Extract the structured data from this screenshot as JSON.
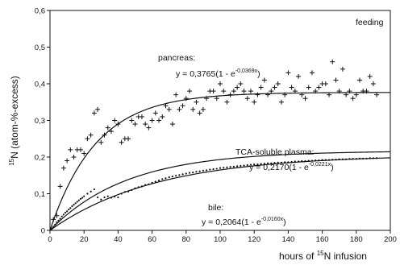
{
  "chart_data": {
    "type": "scatter",
    "title": "",
    "xlabel_pre": "hours of ",
    "xlabel_iso": "15",
    "xlabel_post": "N infusion",
    "ylabel_iso": "15",
    "ylabel_post": "N (atom-%-excess)",
    "xlim": [
      0,
      200
    ],
    "ylim": [
      0,
      0.6
    ],
    "x_ticks": [
      "0",
      "20",
      "40",
      "60",
      "80",
      "100",
      "120",
      "140",
      "160",
      "180",
      "200"
    ],
    "y_ticks": [
      "0",
      "0,1",
      "0,2",
      "0,3",
      "0,4",
      "0,5",
      "0,6"
    ],
    "grid": false,
    "corner_label": "feeding",
    "series": [
      {
        "name": "pancreas",
        "marker": "plus",
        "fit": {
          "a": 0.3765,
          "k": 0.0369
        },
        "label_name": "pancreas:",
        "equation_lhs": "y = 0,3765(1 - e",
        "equation_exp": "-0,0369x",
        "equation_rhs": ")",
        "points": [
          [
            2,
            0.03
          ],
          [
            4,
            0.04
          ],
          [
            6,
            0.12
          ],
          [
            8,
            0.17
          ],
          [
            10,
            0.19
          ],
          [
            12,
            0.22
          ],
          [
            14,
            0.2
          ],
          [
            16,
            0.22
          ],
          [
            18,
            0.22
          ],
          [
            20,
            0.21
          ],
          [
            22,
            0.25
          ],
          [
            24,
            0.26
          ],
          [
            26,
            0.32
          ],
          [
            28,
            0.33
          ],
          [
            30,
            0.24
          ],
          [
            32,
            0.26
          ],
          [
            34,
            0.28
          ],
          [
            36,
            0.27
          ],
          [
            38,
            0.3
          ],
          [
            40,
            0.29
          ],
          [
            42,
            0.24
          ],
          [
            44,
            0.25
          ],
          [
            46,
            0.25
          ],
          [
            48,
            0.3
          ],
          [
            50,
            0.29
          ],
          [
            52,
            0.31
          ],
          [
            54,
            0.31
          ],
          [
            56,
            0.29
          ],
          [
            58,
            0.28
          ],
          [
            60,
            0.3
          ],
          [
            62,
            0.32
          ],
          [
            64,
            0.3
          ],
          [
            66,
            0.31
          ],
          [
            68,
            0.34
          ],
          [
            70,
            0.33
          ],
          [
            72,
            0.29
          ],
          [
            74,
            0.37
          ],
          [
            76,
            0.33
          ],
          [
            78,
            0.34
          ],
          [
            80,
            0.36
          ],
          [
            82,
            0.38
          ],
          [
            84,
            0.33
          ],
          [
            86,
            0.35
          ],
          [
            88,
            0.32
          ],
          [
            90,
            0.33
          ],
          [
            92,
            0.36
          ],
          [
            94,
            0.38
          ],
          [
            96,
            0.38
          ],
          [
            98,
            0.36
          ],
          [
            100,
            0.4
          ],
          [
            102,
            0.38
          ],
          [
            104,
            0.35
          ],
          [
            106,
            0.37
          ],
          [
            108,
            0.38
          ],
          [
            110,
            0.39
          ],
          [
            112,
            0.4
          ],
          [
            114,
            0.38
          ],
          [
            116,
            0.36
          ],
          [
            118,
            0.38
          ],
          [
            120,
            0.35
          ],
          [
            122,
            0.37
          ],
          [
            124,
            0.39
          ],
          [
            126,
            0.41
          ],
          [
            128,
            0.37
          ],
          [
            130,
            0.38
          ],
          [
            132,
            0.39
          ],
          [
            134,
            0.4
          ],
          [
            136,
            0.35
          ],
          [
            138,
            0.37
          ],
          [
            140,
            0.43
          ],
          [
            142,
            0.39
          ],
          [
            144,
            0.38
          ],
          [
            146,
            0.42
          ],
          [
            148,
            0.37
          ],
          [
            150,
            0.36
          ],
          [
            152,
            0.39
          ],
          [
            154,
            0.43
          ],
          [
            156,
            0.38
          ],
          [
            158,
            0.39
          ],
          [
            160,
            0.4
          ],
          [
            162,
            0.4
          ],
          [
            164,
            0.37
          ],
          [
            166,
            0.46
          ],
          [
            168,
            0.41
          ],
          [
            170,
            0.38
          ],
          [
            172,
            0.44
          ],
          [
            174,
            0.37
          ],
          [
            176,
            0.38
          ],
          [
            178,
            0.36
          ],
          [
            180,
            0.37
          ],
          [
            182,
            0.41
          ],
          [
            184,
            0.38
          ],
          [
            186,
            0.38
          ],
          [
            188,
            0.42
          ],
          [
            190,
            0.4
          ],
          [
            192,
            0.37
          ]
        ]
      },
      {
        "name": "TCA-soluble plasma",
        "marker": "none",
        "fit": {
          "a": 0.217,
          "k": 0.0221
        },
        "label_name": "TCA-soluble plasma:",
        "equation_lhs": "y = 0,2170(1 - e",
        "equation_exp": "-0,0221x",
        "equation_rhs": ")",
        "points": []
      },
      {
        "name": "bile",
        "marker": "dot",
        "fit": {
          "a": 0.2064,
          "k": 0.016
        },
        "label_name": "bile:",
        "equation_lhs": "y = 0,2064(1 - e",
        "equation_exp": "-0,0160x",
        "equation_rhs": ")",
        "points": [
          [
            1,
            0.004
          ],
          [
            2,
            0.01
          ],
          [
            3,
            0.016
          ],
          [
            4,
            0.022
          ],
          [
            5,
            0.027
          ],
          [
            6,
            0.032
          ],
          [
            7,
            0.038
          ],
          [
            8,
            0.043
          ],
          [
            9,
            0.048
          ],
          [
            10,
            0.052
          ],
          [
            11,
            0.057
          ],
          [
            12,
            0.061
          ],
          [
            13,
            0.066
          ],
          [
            14,
            0.07
          ],
          [
            15,
            0.074
          ],
          [
            16,
            0.078
          ],
          [
            17,
            0.082
          ],
          [
            18,
            0.086
          ],
          [
            19,
            0.089
          ],
          [
            20,
            0.093
          ],
          [
            22,
            0.1
          ],
          [
            24,
            0.106
          ],
          [
            26,
            0.112
          ],
          [
            28,
            0.09
          ],
          [
            30,
            0.084
          ],
          [
            32,
            0.09
          ],
          [
            34,
            0.093
          ],
          [
            36,
            0.089
          ],
          [
            38,
            0.092
          ],
          [
            40,
            0.09
          ],
          [
            42,
            0.1
          ],
          [
            44,
            0.105
          ],
          [
            46,
            0.106
          ],
          [
            48,
            0.11
          ],
          [
            50,
            0.115
          ],
          [
            52,
            0.118
          ],
          [
            54,
            0.12
          ],
          [
            56,
            0.124
          ],
          [
            58,
            0.126
          ],
          [
            60,
            0.13
          ],
          [
            62,
            0.133
          ],
          [
            64,
            0.136
          ],
          [
            66,
            0.14
          ],
          [
            68,
            0.142
          ],
          [
            70,
            0.145
          ],
          [
            72,
            0.147
          ],
          [
            74,
            0.149
          ],
          [
            76,
            0.151
          ],
          [
            78,
            0.153
          ],
          [
            80,
            0.155
          ],
          [
            82,
            0.157
          ],
          [
            84,
            0.158
          ],
          [
            86,
            0.16
          ],
          [
            88,
            0.161
          ],
          [
            90,
            0.163
          ],
          [
            92,
            0.164
          ],
          [
            94,
            0.166
          ],
          [
            96,
            0.167
          ],
          [
            98,
            0.168
          ],
          [
            100,
            0.17
          ],
          [
            102,
            0.171
          ],
          [
            104,
            0.172
          ],
          [
            106,
            0.173
          ],
          [
            108,
            0.174
          ],
          [
            110,
            0.175
          ],
          [
            112,
            0.176
          ],
          [
            114,
            0.177
          ],
          [
            116,
            0.178
          ],
          [
            118,
            0.179
          ],
          [
            120,
            0.18
          ],
          [
            122,
            0.18
          ],
          [
            124,
            0.181
          ],
          [
            126,
            0.182
          ],
          [
            128,
            0.183
          ],
          [
            130,
            0.183
          ],
          [
            132,
            0.184
          ],
          [
            134,
            0.185
          ],
          [
            136,
            0.185
          ],
          [
            138,
            0.186
          ],
          [
            140,
            0.186
          ],
          [
            142,
            0.187
          ],
          [
            144,
            0.188
          ],
          [
            146,
            0.188
          ],
          [
            148,
            0.189
          ],
          [
            150,
            0.189
          ],
          [
            152,
            0.19
          ],
          [
            154,
            0.19
          ],
          [
            156,
            0.191
          ],
          [
            158,
            0.191
          ],
          [
            160,
            0.192
          ],
          [
            162,
            0.192
          ],
          [
            164,
            0.192
          ],
          [
            166,
            0.193
          ],
          [
            168,
            0.193
          ],
          [
            170,
            0.194
          ],
          [
            172,
            0.194
          ],
          [
            174,
            0.194
          ],
          [
            176,
            0.195
          ],
          [
            178,
            0.195
          ],
          [
            180,
            0.195
          ],
          [
            182,
            0.196
          ],
          [
            184,
            0.196
          ],
          [
            186,
            0.196
          ],
          [
            188,
            0.197
          ],
          [
            190,
            0.197
          ],
          [
            192,
            0.197
          ]
        ]
      }
    ]
  }
}
